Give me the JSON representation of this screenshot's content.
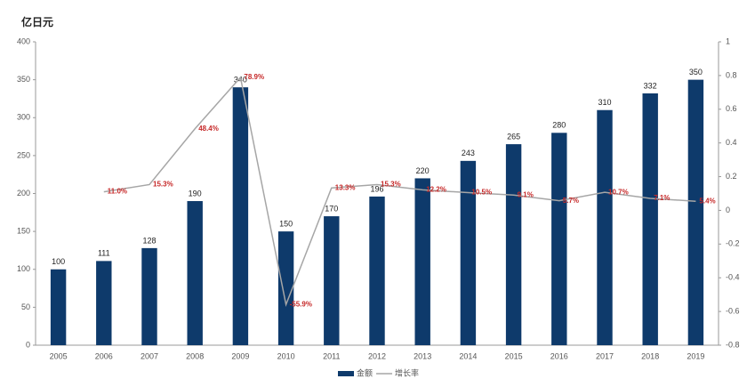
{
  "chart_data": {
    "type": "bar-line",
    "y_label": "亿日元",
    "categories": [
      "2005",
      "2006",
      "2007",
      "2008",
      "2009",
      "2010",
      "2011",
      "2012",
      "2013",
      "2014",
      "2015",
      "2016",
      "2017",
      "2018",
      "2019"
    ],
    "series": [
      {
        "name": "金额",
        "type": "bar",
        "color": "#0e3a6b",
        "values": [
          100,
          111,
          128,
          190,
          340,
          150,
          170,
          196,
          220,
          243,
          265,
          280,
          310,
          332,
          350
        ]
      },
      {
        "name": "增长率",
        "type": "line",
        "axis": "y2",
        "color": "#a6a6a6",
        "label_color": "#c62828",
        "values": [
          null,
          0.11,
          0.153,
          0.484,
          0.789,
          -0.559,
          0.133,
          0.153,
          0.122,
          0.105,
          0.091,
          0.057,
          0.107,
          0.071,
          0.054
        ],
        "value_labels": [
          null,
          "11.0%",
          "15.3%",
          "48.4%",
          "78.9%",
          "-55.9%",
          "13.3%",
          "15.3%",
          "12.2%",
          "10.5%",
          "9.1%",
          "5.7%",
          "10.7%",
          "7.1%",
          "5.4%"
        ]
      }
    ],
    "ylim": [
      0,
      400
    ],
    "yticks": [
      0,
      50,
      100,
      150,
      200,
      250,
      300,
      350,
      400
    ],
    "y2lim": [
      -0.8,
      1
    ],
    "y2ticks": [
      -0.8,
      -0.6,
      -0.4,
      -0.2,
      0,
      0.2,
      0.4,
      0.6,
      0.8,
      1
    ]
  }
}
